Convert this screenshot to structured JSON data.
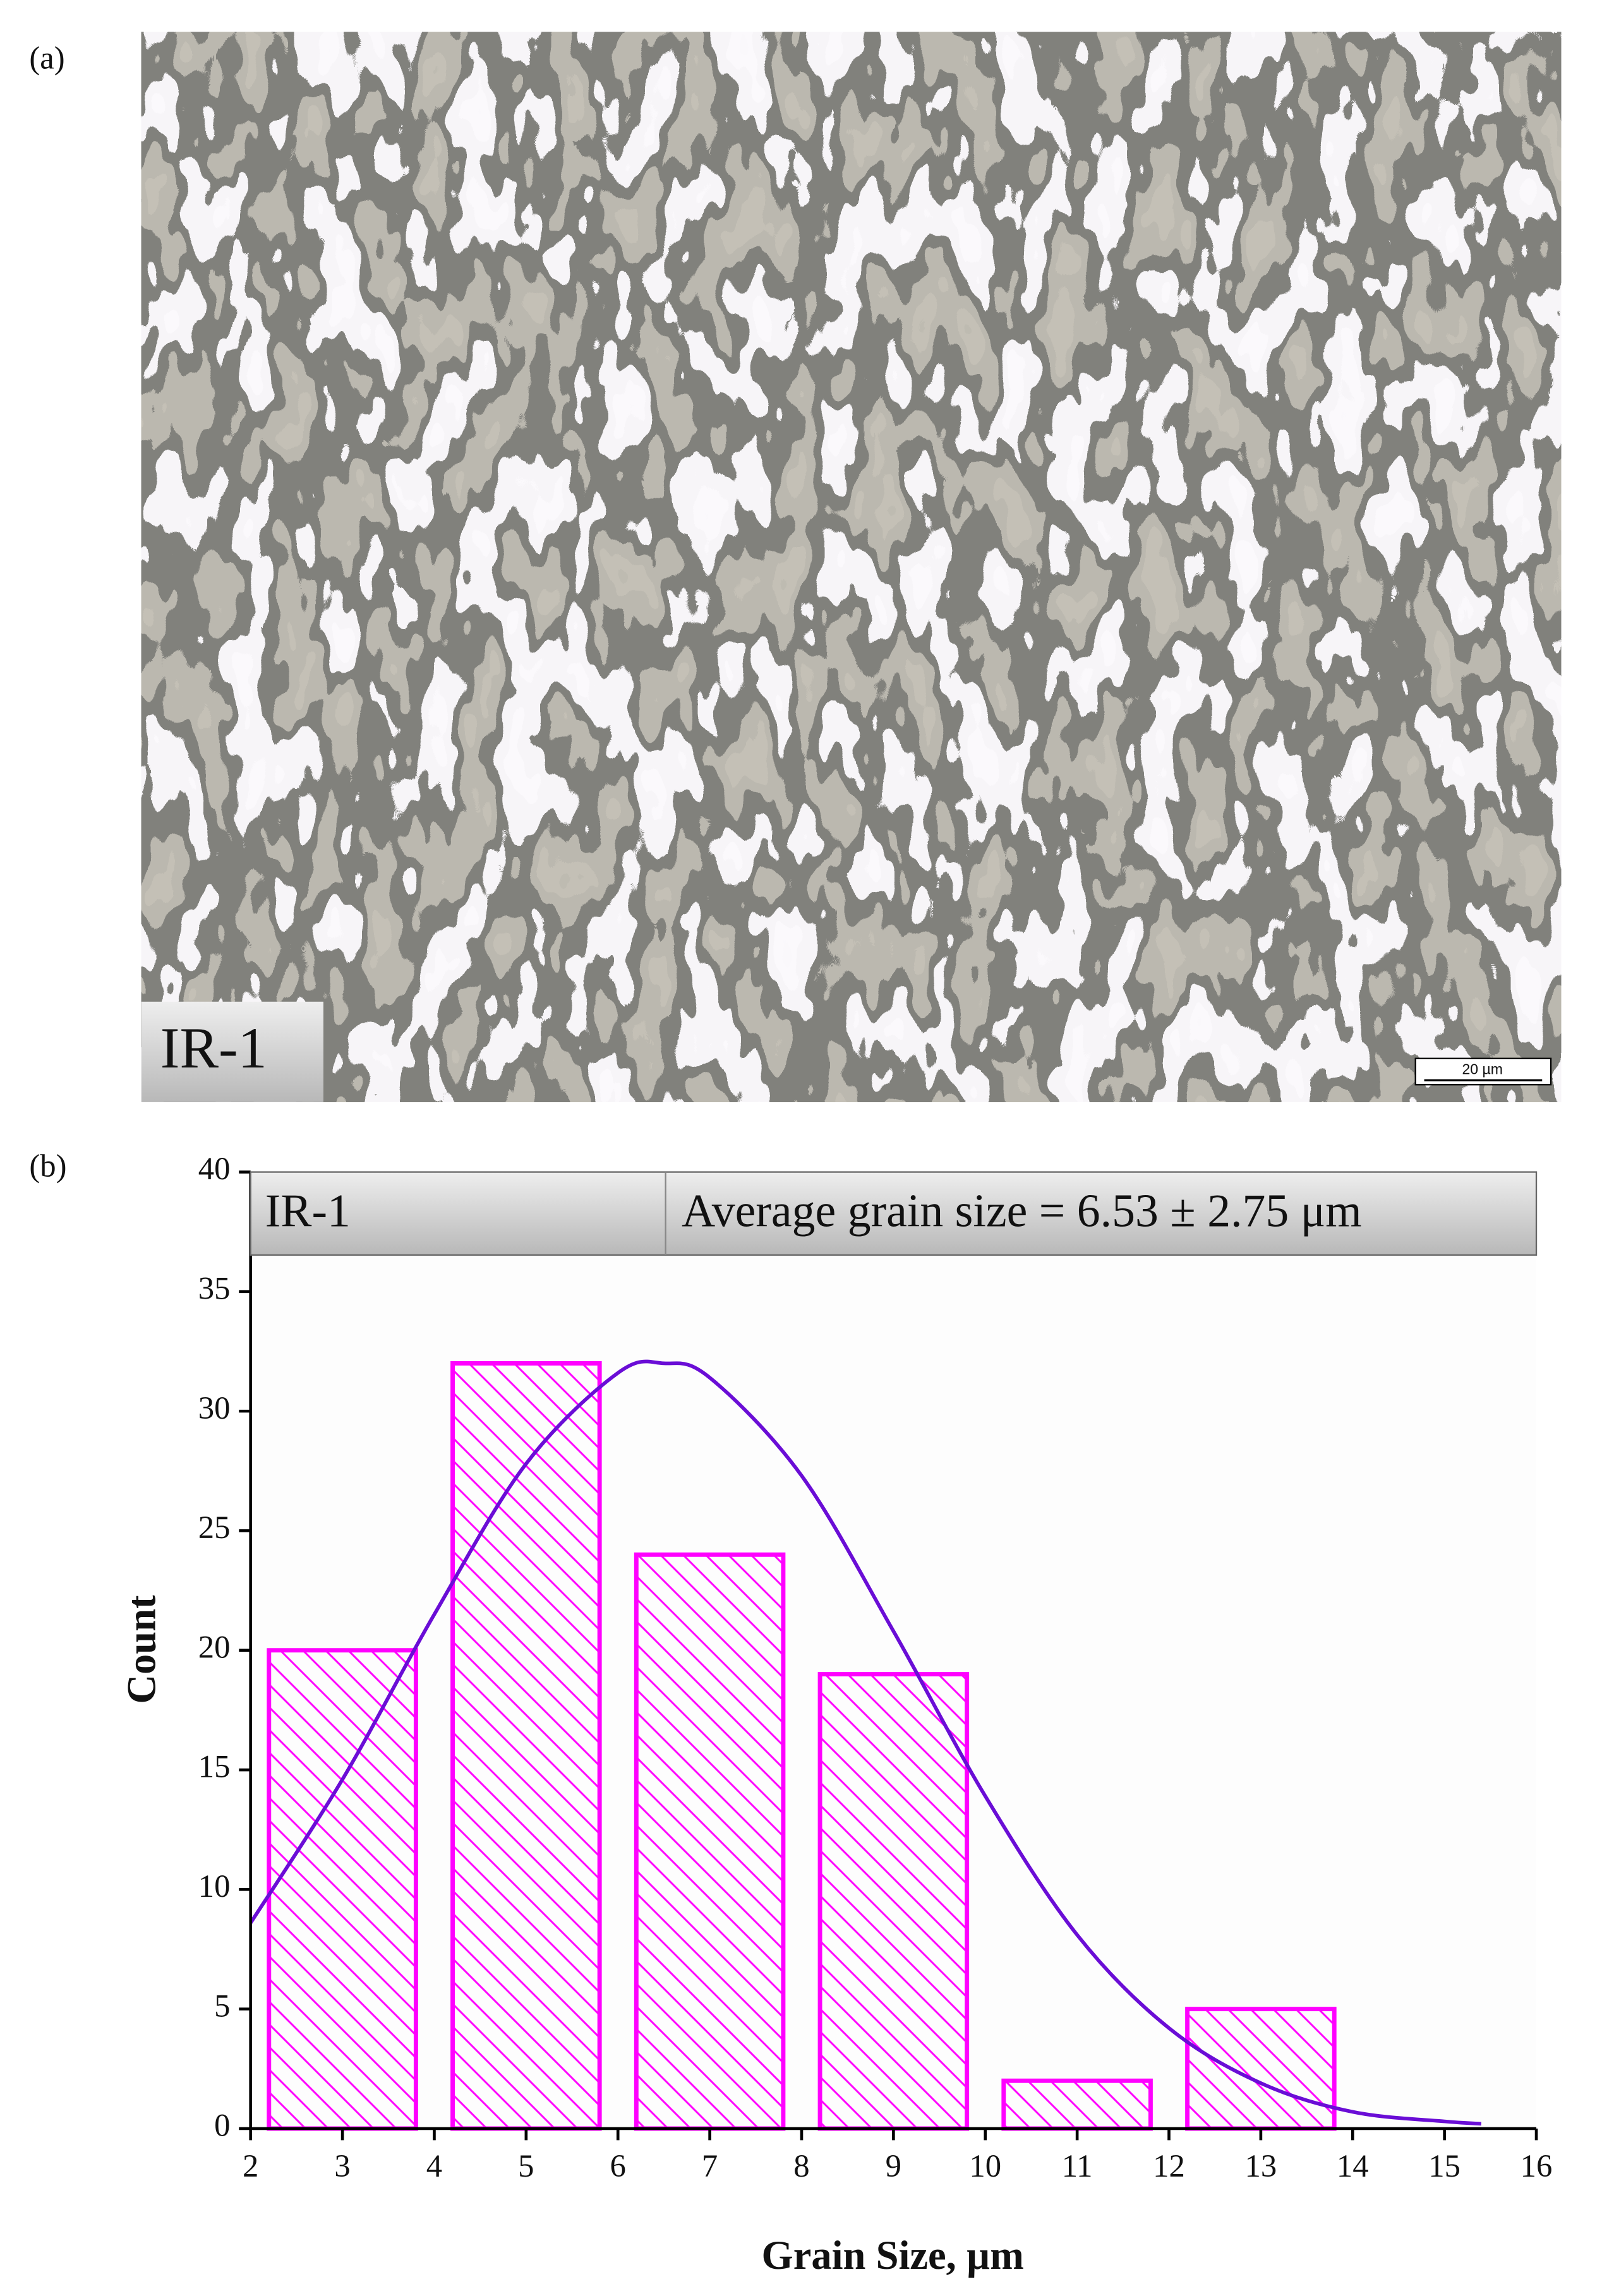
{
  "panel_a": {
    "label": "(a)",
    "image_label": "IR-1",
    "scale_bar": "20 µm"
  },
  "chart_data": {
    "type": "histogram",
    "panel_label": "(b)",
    "header_left": "IR-1",
    "header_right": "Average grain size = 6.53 ± 2.75 μm",
    "x_label": "Grain Size, µm",
    "y_label": "Count",
    "bins": [
      2,
      4,
      6,
      8,
      10,
      12,
      14
    ],
    "counts": [
      20,
      32,
      24,
      19,
      2,
      5
    ],
    "color": "#ff00ff",
    "fit_curve": {
      "color": "#6a0dd6",
      "x": [
        2,
        3,
        4,
        5,
        6,
        6.5,
        7,
        8,
        9,
        10,
        11,
        12,
        13,
        14,
        15,
        15.4
      ],
      "values": [
        8.6,
        14.6,
        21.5,
        27.8,
        31.6,
        32,
        31.4,
        27.3,
        20.8,
        13.9,
        8.1,
        4.2,
        1.9,
        0.7,
        0.3,
        0.2
      ]
    },
    "xlim": [
      2,
      16
    ],
    "ylim": [
      0,
      40
    ],
    "xticks": [
      2,
      3,
      4,
      5,
      6,
      7,
      8,
      9,
      10,
      11,
      12,
      13,
      14,
      15,
      16
    ],
    "yticks": [
      0,
      5,
      10,
      15,
      20,
      25,
      30,
      35,
      40
    ]
  }
}
